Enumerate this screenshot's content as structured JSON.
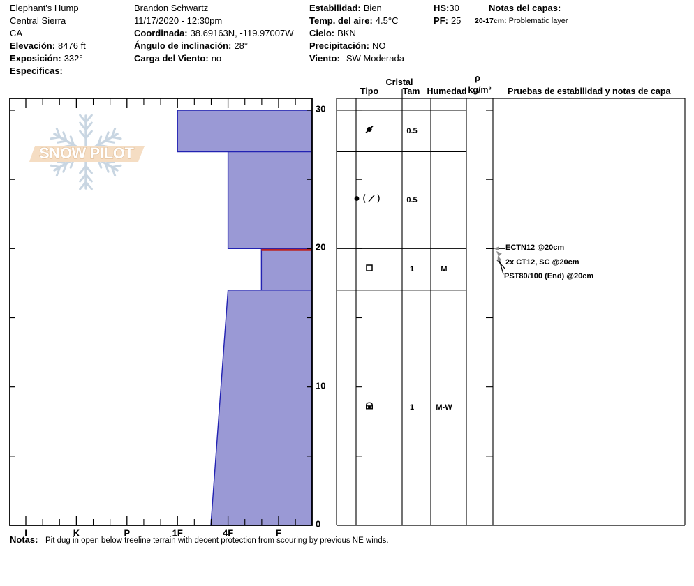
{
  "header": {
    "site": {
      "name": "Elephant's Hump",
      "region": "Central Sierra",
      "state": "CA",
      "elevation_label": "Elevación:",
      "elevation": "8476 ft",
      "aspect_label": "Exposición:",
      "aspect": "332°",
      "specifics_label": "Especificas:"
    },
    "observer": {
      "name": "Brandon Schwartz",
      "datetime": "11/17/2020 - 12:30pm",
      "coords_label": "Coordinada:",
      "coords": "38.69163N, -119.97007W",
      "slope_label": "Ángulo de inclinación:",
      "slope": "28°",
      "windload_label": "Carga del Viento:",
      "windload": "no"
    },
    "conditions": {
      "stability_label": "Estabilidad:",
      "stability": "Bien",
      "airtemp_label": "Temp. del aire:",
      "airtemp": "4.5°C",
      "sky_label": "Cielo:",
      "sky": "BKN",
      "precip_label": "Precipitación:",
      "precip": "NO",
      "wind_label": "Viento:",
      "wind": "SW Moderada"
    },
    "totals": {
      "hs_label": "HS:",
      "hs": "30",
      "pf_label": "PF:",
      "pf": "25"
    },
    "layer_notes": {
      "title": "Notas del capas:",
      "items": [
        {
          "range": "20-17cm:",
          "text": "Problematic layer"
        }
      ]
    }
  },
  "watermark": {
    "text": "SNOW PILOT"
  },
  "table": {
    "headers": {
      "cristal": "Cristal",
      "tipo": "Tipo",
      "tam": "Tam",
      "humedad": "Humedad",
      "rho": "ρ",
      "rho_units": "kg/m³",
      "pruebas": "Pruebas de estabilidad y notas de capa"
    }
  },
  "notes": {
    "label": "Notas:",
    "text": "Pit dug in open below treeline terrain with decent protection from scouring by previous NE winds."
  },
  "chart_data": {
    "type": "snow-profile",
    "depth_axis": {
      "unit": "cm",
      "min": 0,
      "max": 31,
      "major_ticks": [
        0,
        10,
        20,
        30
      ],
      "minor_step": 5,
      "labels_side": "right"
    },
    "hardness_axis": {
      "categories": [
        "I",
        "K",
        "P",
        "1F",
        "4F",
        "F"
      ],
      "position": "bottom",
      "index_scale": "I=0, K=1, P=2, 1F=3, 4F=4, F=5"
    },
    "hs_cm": 30,
    "pf_cm": 25,
    "layers": [
      {
        "top_cm": 30,
        "bottom_cm": 27,
        "hardness": "1F",
        "h_index_top": 3,
        "h_index_bottom": 3,
        "grain_form": "DF/RG",
        "grain_symbol": "df-rg",
        "grain_size_mm": "0.5",
        "moisture": "",
        "density": "",
        "problematic": false
      },
      {
        "top_cm": 27,
        "bottom_cm": 20,
        "hardness": "4F",
        "h_index_top": 4,
        "h_index_bottom": 4,
        "grain_form": "RG (DF)",
        "grain_symbol": "rg-df",
        "grain_size_mm": "0.5",
        "moisture": "",
        "density": "",
        "problematic": false
      },
      {
        "top_cm": 20,
        "bottom_cm": 17,
        "hardness": "F+",
        "h_index_top": 4.66,
        "h_index_bottom": 4.66,
        "grain_form": "FC",
        "grain_symbol": "fc",
        "grain_size_mm": "1",
        "moisture": "M",
        "density": "",
        "problematic": true
      },
      {
        "top_cm": 17,
        "bottom_cm": 0,
        "hardness": "4F",
        "h_index_top": 4.0,
        "h_index_bottom": 3.66,
        "grain_form": "MFcr",
        "grain_symbol": "mfcr",
        "grain_size_mm": "1",
        "moisture": "M-W",
        "density": "",
        "problematic": false
      }
    ],
    "stability_tests": [
      {
        "label": "ECTN12 @20cm",
        "depth_cm": 20
      },
      {
        "label": "2x CT12, SC @20cm",
        "depth_cm": 20
      },
      {
        "label": "PST80/100 (End) @20cm",
        "depth_cm": 20
      }
    ],
    "colors": {
      "bar_fill": "#9a99d5",
      "bar_stroke": "#2222b2",
      "problem_line": "#bb2222",
      "frame": "#000000",
      "arrow_gray": "#909090",
      "watermark_flake": "#c9d6e2",
      "watermark_banner": "#f5ddc3",
      "watermark_text_stroke": "#e0bd97"
    }
  }
}
